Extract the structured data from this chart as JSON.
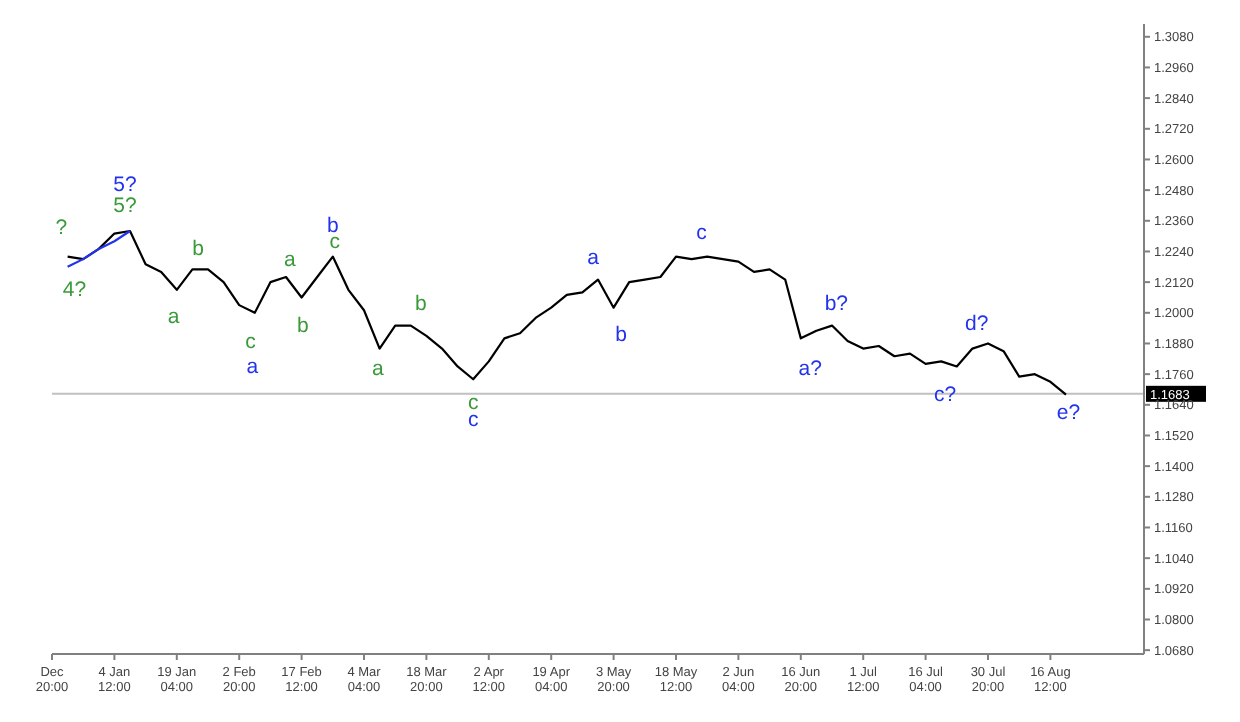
{
  "chart_data": {
    "type": "line",
    "categories": [
      "Dec 20:00",
      null,
      null,
      null,
      "4 Jan 12:00",
      null,
      null,
      null,
      "19 Jan 04:00",
      null,
      null,
      null,
      "2 Feb 20:00",
      null,
      null,
      null,
      "17 Feb 12:00",
      null,
      null,
      null,
      "4 Mar 04:00",
      null,
      null,
      null,
      "18 Mar 20:00",
      null,
      null,
      null,
      "2 Apr 12:00",
      null,
      null,
      null,
      "19 Apr 04:00",
      null,
      null,
      null,
      "3 May 20:00",
      null,
      null,
      null,
      "18 May 12:00",
      null,
      null,
      null,
      "2 Jun 04:00",
      null,
      null,
      null,
      "16 Jun 20:00",
      null,
      null,
      null,
      "1 Jul 12:00",
      null,
      null,
      null,
      "16 Jul 04:00",
      null,
      null,
      null,
      "30 Jul 20:00",
      null,
      null,
      null,
      "16 Aug 12:00",
      null,
      null,
      null,
      null,
      null,
      null
    ],
    "ylim": [
      1.0665,
      1.313
    ],
    "yticks": [
      {
        "value": 1.068,
        "label": "1.0680"
      },
      {
        "value": 1.08,
        "label": "1.0800"
      },
      {
        "value": 1.092,
        "label": "1.0920"
      },
      {
        "value": 1.104,
        "label": "1.1040"
      },
      {
        "value": 1.116,
        "label": "1.1160"
      },
      {
        "value": 1.128,
        "label": "1.1280"
      },
      {
        "value": 1.14,
        "label": "1.1400"
      },
      {
        "value": 1.152,
        "label": "1.1520"
      },
      {
        "value": 1.164,
        "label": "1.1640"
      },
      {
        "value": 1.176,
        "label": "1.1760"
      },
      {
        "value": 1.188,
        "label": "1.1880"
      },
      {
        "value": 1.2,
        "label": "1.2000"
      },
      {
        "value": 1.212,
        "label": "1.2120"
      },
      {
        "value": 1.224,
        "label": "1.2240"
      },
      {
        "value": 1.236,
        "label": "1.2360"
      },
      {
        "value": 1.248,
        "label": "1.2480"
      },
      {
        "value": 1.26,
        "label": "1.2600"
      },
      {
        "value": 1.272,
        "label": "1.2720"
      },
      {
        "value": 1.284,
        "label": "1.2840"
      },
      {
        "value": 1.296,
        "label": "1.2960"
      },
      {
        "value": 1.308,
        "label": "1.3080"
      }
    ],
    "grid": false,
    "series": [
      {
        "color": "#000000",
        "values": [
          null,
          1.222,
          1.221,
          1.225,
          1.231,
          1.232,
          1.219,
          1.216,
          1.209,
          1.217,
          1.217,
          1.212,
          1.203,
          1.2,
          1.212,
          1.214,
          1.206,
          1.214,
          1.222,
          1.209,
          1.201,
          1.186,
          1.195,
          1.195,
          1.191,
          1.186,
          1.179,
          1.174,
          1.181,
          1.19,
          1.192,
          1.198,
          1.202,
          1.207,
          1.208,
          1.213,
          1.202,
          1.212,
          1.213,
          1.214,
          1.222,
          1.221,
          1.222,
          1.221,
          1.22,
          1.216,
          1.217,
          1.213,
          1.19,
          1.193,
          1.195,
          1.189,
          1.186,
          1.187,
          1.183,
          1.184,
          1.18,
          1.181,
          1.179,
          1.186,
          1.188,
          1.185,
          1.175,
          1.176,
          1.173,
          1.168,
          null,
          null,
          null,
          null,
          null
        ]
      },
      {
        "color": "#2233ee",
        "values": [
          null,
          1.218,
          1.221,
          1.225,
          1.228,
          1.232,
          null,
          null,
          null,
          null,
          null,
          null,
          null,
          null,
          null,
          null,
          null,
          null,
          null,
          null,
          null,
          null,
          null,
          null,
          null,
          null,
          null,
          null,
          null,
          null,
          null,
          null,
          null,
          null,
          null,
          null,
          null,
          null,
          null,
          null,
          null,
          null,
          null,
          null,
          null,
          null,
          null,
          null,
          null,
          null,
          null,
          null,
          null,
          null,
          null,
          null,
          null,
          null,
          null,
          null,
          null,
          null,
          null,
          null,
          null,
          null,
          null,
          null,
          null,
          null,
          null
        ]
      }
    ],
    "ref_lines": [
      {
        "axis": "y",
        "value": 1.1683,
        "label": "1.1683",
        "color": "#c0c0c0"
      }
    ],
    "annotations": [
      "?",
      "4?",
      "5?",
      "5?",
      "b",
      "a",
      "c",
      "a",
      "a",
      "b",
      "b",
      "c",
      "a",
      "b",
      "c",
      "c",
      "a",
      "b",
      "c",
      "a?",
      "b?",
      "c?",
      "d?",
      "e?"
    ]
  }
}
